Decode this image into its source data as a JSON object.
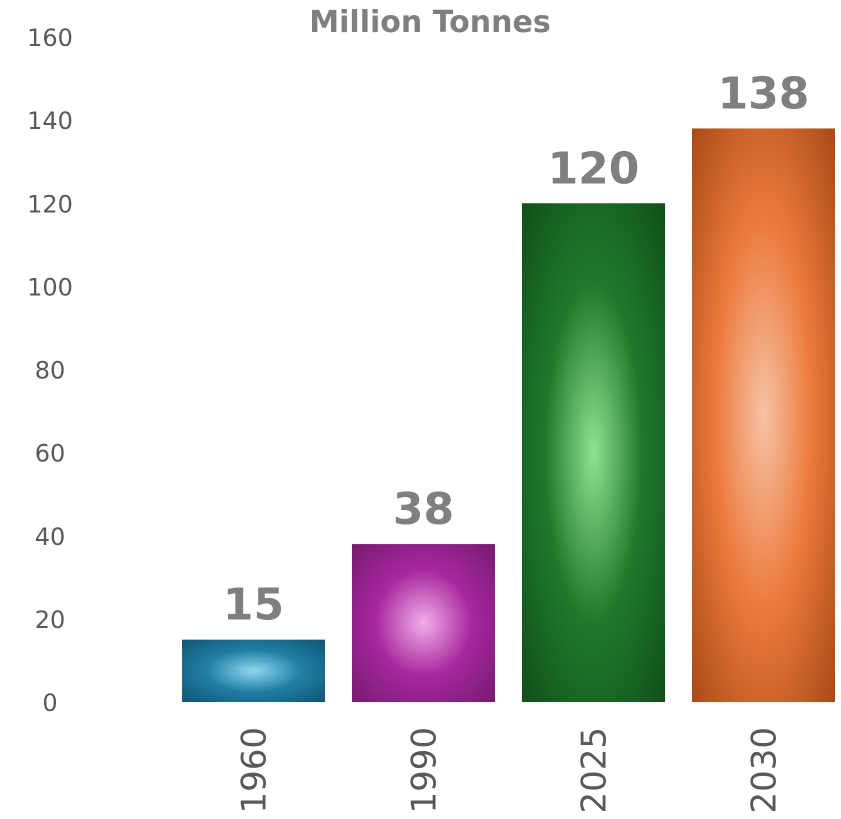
{
  "chart_data": {
    "type": "bar",
    "title": "Million Tonnes",
    "xlabel": "",
    "ylabel": "",
    "categories": [
      "1960",
      "1990",
      "2025",
      "2030"
    ],
    "values": [
      15,
      38,
      120,
      138
    ],
    "data_labels": [
      "15",
      "38",
      "120",
      "138"
    ],
    "y_ticks": [
      "0",
      "20",
      "40",
      "60",
      "80",
      "100",
      "120",
      "140",
      "160"
    ],
    "ylim": [
      0,
      160
    ],
    "grid": false,
    "legend": "none",
    "colors": [
      {
        "edge": "#0f4f6e",
        "mid": "#1f7fa3",
        "center": "#8fd6ef"
      },
      {
        "edge": "#6e1a6a",
        "mid": "#a8279f",
        "center": "#f0aee6"
      },
      {
        "edge": "#0e4a17",
        "mid": "#1f7a2c",
        "center": "#8fe28f"
      },
      {
        "edge": "#a04412",
        "mid": "#ec7a3c",
        "center": "#f6c2a4"
      }
    ]
  }
}
